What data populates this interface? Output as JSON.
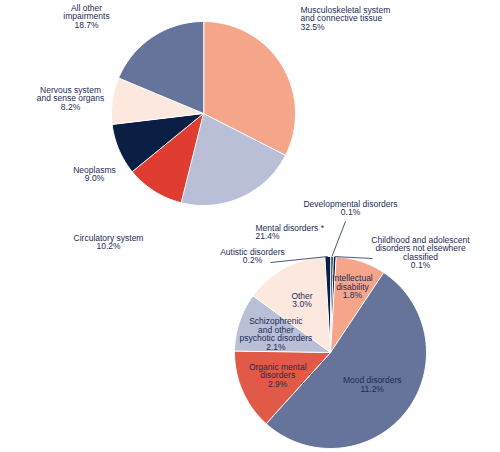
{
  "chart_data": [
    {
      "type": "pie",
      "categories": [
        "Musculoskeletal system and connective tissue",
        "Mental disorders *",
        "Circulatory system",
        "Neoplasms",
        "Nervous system and sense organs",
        "All other impairments"
      ],
      "values": [
        32.5,
        21.4,
        10.2,
        9.0,
        8.2,
        18.7
      ],
      "value_labels": [
        "32.5%",
        "21.4%",
        "10.2%",
        "9.0%",
        "8.2%",
        "18.7%"
      ],
      "colors": [
        "#f4a58a",
        "#b8bfd6",
        "#e03c31",
        "#0b1f44",
        "#fde8e0",
        "#66739a"
      ],
      "data_labels": true
    },
    {
      "type": "pie",
      "categories": [
        "Developmental disorders",
        "Childhood and adolescent disorders not elsewhere classified",
        "Intellectual disability",
        "Mood disorders",
        "Organic mental disorders",
        "Schizophrenic and other psychotic disorders",
        "Other",
        "Autistic disorders"
      ],
      "values": [
        0.1,
        0.1,
        1.8,
        11.2,
        2.9,
        2.1,
        3.0,
        0.2
      ],
      "value_labels": [
        "0.1%",
        "0.1%",
        "1.8%",
        "11.2%",
        "2.9%",
        "2.1%",
        "3.0%",
        "0.2%"
      ],
      "colors": [
        "#0b1f44",
        "#0b1f44",
        "#f4a58a",
        "#66739a",
        "#e05a47",
        "#b8bfd6",
        "#fde8e0",
        "#0b1f44"
      ],
      "data_labels": true
    }
  ]
}
